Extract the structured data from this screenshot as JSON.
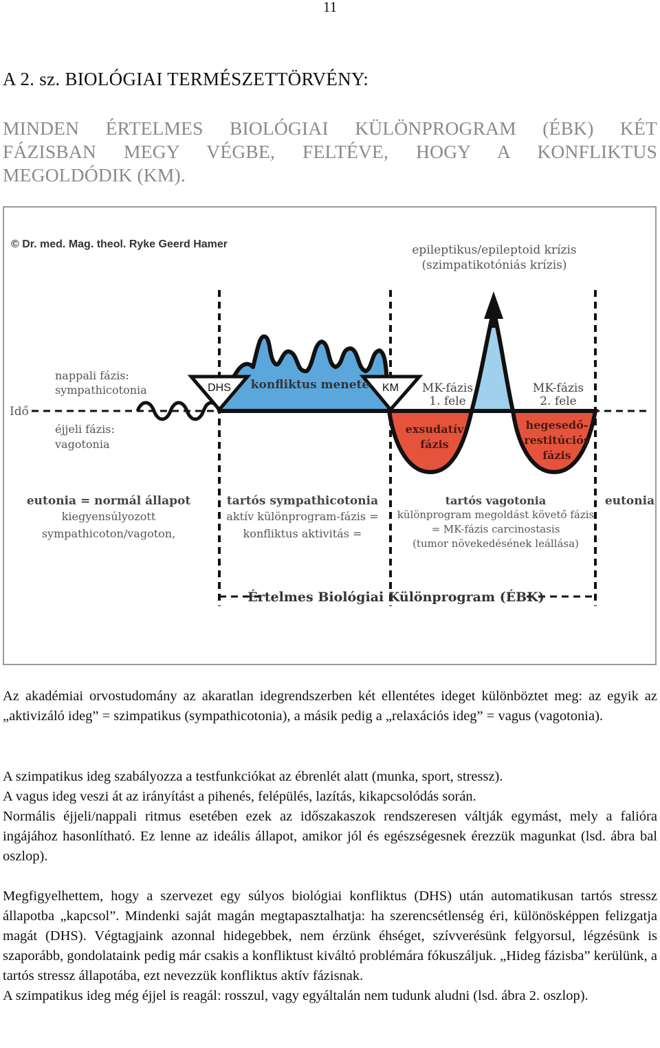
{
  "page_number": "11",
  "law_title": "A 2. sz. BIOLÓGIAI TERMÉSZETTÖRVÉNY:",
  "law_statement": [
    "MINDEN ÉRTELMES BIOLÓGIAI KÜLÖNPROGRAM (ÉBK) KÉT",
    "FÁZISBAN MEGY VÉGBE, FELTÉVE, HOGY A KONFLIKTUS",
    "MEGOLDÓDIK (KM)."
  ],
  "figure": {
    "copyright": "© Dr. med. Mag. theol. Ryke Geerd Hamer",
    "crisis_line1": "epileptikus/epileptoid krízis",
    "crisis_line2": "(szimpatikotóniás krízis)",
    "day_phase_line1": "nappali fázis:",
    "day_phase_line2": "sympathicotonia",
    "time_label": "Idő",
    "night_phase_line1": "éjjeli fázis:",
    "night_phase_line2": "vagotonia",
    "dhs_label": "DHS",
    "conflict_course": "konfliktus menete",
    "km_label": "KM",
    "mk1_line1": "MK-fázis",
    "mk1_line2": "1. fele",
    "mk2_line1": "MK-fázis",
    "mk2_line2": "2. fele",
    "exudative_line1": "exsudatív",
    "exudative_line2": "fázis",
    "healing_line1": "hegesedő-",
    "healing_line2": "restitúciós",
    "healing_line3": "fázis",
    "eutonia_left_line1": "eutonia = normál állapot",
    "eutonia_left_line2": "kiegyensúlyozott",
    "eutonia_left_line3": "sympathicoton/vagoton,",
    "sympathicotonia_line1": "tartós sympathicotonia",
    "sympathicotonia_line2": "aktív különprogram-fázis =",
    "sympathicotonia_line3": "konfliktus aktivitás =",
    "vagotonia_line1": "tartós vagotonia",
    "vagotonia_line2": "különprogram megoldást követő fázis",
    "vagotonia_line3": "= MK-fázis carcinostasis",
    "vagotonia_line4": "(tumor növekedésének leállása)",
    "eutonia_right": "eutonia",
    "ebk_label": "Értelmes Biológiai Különprogram (ÉBK)",
    "colors": {
      "blue": "#5ba7dc",
      "red": "#e5533d",
      "light_blue": "#9fd0ec",
      "text_gray": "#555555"
    }
  },
  "paragraphs": {
    "p1": "Az akadémiai orvostudomány az akaratlan idegrendszerben két ellentétes ideget különböztet meg: az egyik az „aktivizáló ideg” = szimpatikus (sympathicotonia), a másik pedig a „relaxációs ideg” = vagus (vagotonia).",
    "p2_line1": "A szimpatikus ideg szabályozza a testfunkciókat az ébrenlét alatt (munka, sport, stressz).",
    "p2_line2": "A vagus ideg veszi át az irányítást a pihenés, felépülés, lazítás, kikapcsolódás során.",
    "p2_line3": "Normális éjjeli/nappali ritmus esetében ezek az időszakaszok rendszeresen váltják egymást, mely a falióra ingájához hasonlítható. Ez lenne az ideális állapot, amikor jól és egészségesnek érezzük magunkat (lsd. ábra bal oszlop).",
    "p3": "Megfigyelhettem, hogy a szervezet egy súlyos biológiai konfliktus (DHS) után automatikusan tartós stressz állapotba „kapcsol”. Mindenki saját magán megtapasztalhatja: ha szerencsétlenség éri, különösképpen felizgatja magát (DHS). Végtagjaink azonnal hidegebbek, nem érzünk éhséget, szívverésünk felgyorsul, légzésünk is szaporább, gondolataink pedig már csakis a konfliktust kiváltó problémára fókuszáljuk. „Hideg fázisba” kerülünk, a tartós stressz állapotába, ezt nevezzük konfliktus aktív fázisnak.",
    "p4": "A szimpatikus ideg még éjjel is reagál: rosszul, vagy egyáltalán nem tudunk aludni (lsd. ábra 2. oszlop)."
  }
}
